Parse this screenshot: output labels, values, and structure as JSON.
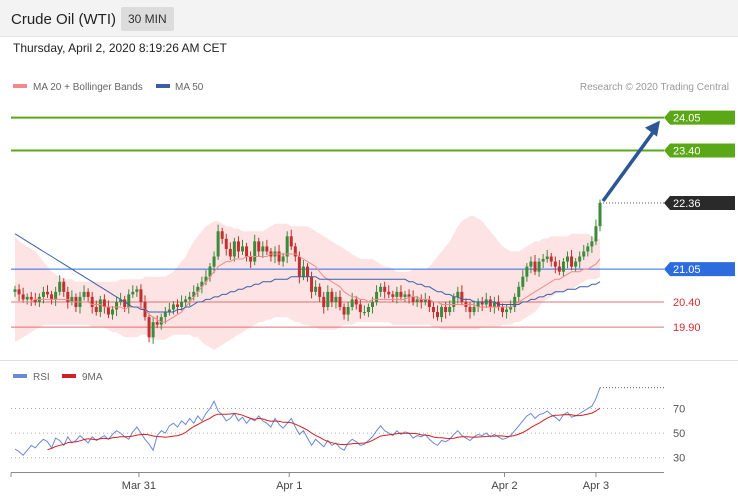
{
  "header": {
    "instrument": "Crude Oil (WTI)",
    "timeframe": "30 MIN"
  },
  "datetime": "Thursday, April 2, 2020 8:19:26 AM CET",
  "legend": {
    "ma20": "MA 20 + Bollinger Bands",
    "ma50": "MA 50",
    "credit": "Research © 2020 Trading Central"
  },
  "rsi_legend": {
    "rsi": "RSI",
    "ma9": "9MA"
  },
  "colors": {
    "up": "#3c8a3c",
    "down": "#c0302c",
    "band": "#fcd9d9",
    "ma20": "#f08a8a",
    "ma50": "#3a5fa8",
    "target": "#5aa817",
    "pivot": "#2d6cdf",
    "support": "#e07070",
    "arrow": "#2b5796",
    "rsi": "#6a8ad8",
    "ma9": "#d42020"
  },
  "chart_data": [
    {
      "type": "candlestick",
      "ylim": [
        19.25,
        24.4
      ],
      "x_ticks": [
        "Mar 31",
        "Apr 1",
        "Apr 2",
        "Apr 3"
      ],
      "levels": [
        {
          "value": 24.05,
          "label": "24.05",
          "kind": "target"
        },
        {
          "value": 23.4,
          "label": "23.40",
          "kind": "target"
        },
        {
          "value": 22.36,
          "label": "22.36",
          "kind": "last"
        },
        {
          "value": 21.05,
          "label": "21.05",
          "kind": "pivot"
        },
        {
          "value": 20.4,
          "label": "20.40",
          "kind": "support"
        },
        {
          "value": 19.9,
          "label": "19.90",
          "kind": "support"
        }
      ],
      "close": [
        20.65,
        20.55,
        20.45,
        20.5,
        20.45,
        20.4,
        20.5,
        20.6,
        20.55,
        20.45,
        20.6,
        20.8,
        20.6,
        20.4,
        20.5,
        20.3,
        20.5,
        20.6,
        20.5,
        20.3,
        20.2,
        20.45,
        20.3,
        20.15,
        20.25,
        20.4,
        20.45,
        20.3,
        20.55,
        20.6,
        20.65,
        20.4,
        20.1,
        19.7,
        20.0,
        19.95,
        20.1,
        20.2,
        20.25,
        20.35,
        20.3,
        20.4,
        20.45,
        20.5,
        20.6,
        20.7,
        20.8,
        20.9,
        21.1,
        21.3,
        21.8,
        21.65,
        21.45,
        21.3,
        21.6,
        21.4,
        21.5,
        21.3,
        21.2,
        21.6,
        21.4,
        21.5,
        21.4,
        21.3,
        21.4,
        21.2,
        21.3,
        21.7,
        21.5,
        21.3,
        20.9,
        21.1,
        20.9,
        20.6,
        20.7,
        20.5,
        20.3,
        20.6,
        20.4,
        20.5,
        20.3,
        20.15,
        20.3,
        20.45,
        20.35,
        20.2,
        20.2,
        20.3,
        20.4,
        20.6,
        20.7,
        20.6,
        20.55,
        20.5,
        20.6,
        20.5,
        20.55,
        20.5,
        20.4,
        20.45,
        20.4,
        20.45,
        20.3,
        20.2,
        20.1,
        20.3,
        20.2,
        20.3,
        20.5,
        20.6,
        20.4,
        20.3,
        20.2,
        20.3,
        20.4,
        20.35,
        20.45,
        20.3,
        20.4,
        20.3,
        20.2,
        20.25,
        20.3,
        20.5,
        20.7,
        20.9,
        21.1,
        21.2,
        21.0,
        21.2,
        21.25,
        21.3,
        21.2,
        21.1,
        21.0,
        21.2,
        21.3,
        21.1,
        21.2,
        21.3,
        21.4,
        21.5,
        21.6,
        21.9,
        22.36
      ],
      "ma20": [
        20.4,
        20.4,
        20.4,
        20.4,
        20.4,
        20.45,
        20.45,
        20.45,
        20.45,
        20.45,
        20.45,
        20.45,
        20.45,
        20.45,
        20.4,
        20.4,
        20.4,
        20.4,
        20.4,
        20.35,
        20.35,
        20.35,
        20.3,
        20.3,
        20.3,
        20.3,
        20.3,
        20.25,
        20.3,
        20.3,
        20.3,
        20.3,
        20.25,
        20.15,
        20.1,
        20.05,
        20.0,
        20.0,
        20.05,
        20.1,
        20.15,
        20.2,
        20.3,
        20.4,
        20.5,
        20.6,
        20.7,
        20.8,
        20.9,
        21.0,
        21.1,
        21.15,
        21.2,
        21.2,
        21.25,
        21.25,
        21.25,
        21.3,
        21.3,
        21.3,
        21.3,
        21.3,
        21.3,
        21.35,
        21.35,
        21.35,
        21.35,
        21.35,
        21.35,
        21.35,
        21.3,
        21.25,
        21.2,
        21.15,
        21.1,
        21.0,
        20.9,
        20.85,
        20.8,
        20.75,
        20.7,
        20.6,
        20.55,
        20.5,
        20.5,
        20.45,
        20.45,
        20.4,
        20.45,
        20.45,
        20.45,
        20.45,
        20.45,
        20.45,
        20.45,
        20.45,
        20.45,
        20.5,
        20.5,
        20.5,
        20.45,
        20.45,
        20.45,
        20.4,
        20.4,
        20.35,
        20.35,
        20.35,
        20.35,
        20.35,
        20.35,
        20.35,
        20.35,
        20.35,
        20.3,
        20.3,
        20.3,
        20.3,
        20.3,
        20.3,
        20.3,
        20.3,
        20.3,
        20.35,
        20.4,
        20.45,
        20.5,
        20.55,
        20.6,
        20.65,
        20.7,
        20.75,
        20.8,
        20.85,
        20.85,
        20.9,
        20.95,
        21.0,
        21.0,
        21.0,
        21.05,
        21.05,
        21.1,
        21.15,
        21.25
      ],
      "upper": [
        21.7,
        21.6,
        21.55,
        21.5,
        21.45,
        21.4,
        21.3,
        21.2,
        21.1,
        21.0,
        20.95,
        20.9,
        20.85,
        20.85,
        20.85,
        20.8,
        20.8,
        20.8,
        20.8,
        20.8,
        20.8,
        20.8,
        20.8,
        20.8,
        20.8,
        20.8,
        20.85,
        20.85,
        20.85,
        20.85,
        20.85,
        20.85,
        20.9,
        20.9,
        20.9,
        20.9,
        20.9,
        20.9,
        20.95,
        21.0,
        21.1,
        21.2,
        21.3,
        21.45,
        21.6,
        21.7,
        21.8,
        21.9,
        21.95,
        22.0,
        22.0,
        21.95,
        21.9,
        21.9,
        21.85,
        21.85,
        21.8,
        21.8,
        21.8,
        21.8,
        21.8,
        21.8,
        21.85,
        21.9,
        21.95,
        21.95,
        21.95,
        21.95,
        21.9,
        21.9,
        21.9,
        21.9,
        21.9,
        21.85,
        21.8,
        21.75,
        21.7,
        21.65,
        21.6,
        21.55,
        21.5,
        21.45,
        21.4,
        21.35,
        21.3,
        21.25,
        21.25,
        21.25,
        21.25,
        21.2,
        21.15,
        21.1,
        21.1,
        21.05,
        21.0,
        21.0,
        21.0,
        21.0,
        21.05,
        21.05,
        21.05,
        21.05,
        21.1,
        21.2,
        21.3,
        21.4,
        21.5,
        21.6,
        21.75,
        21.9,
        22.0,
        22.05,
        22.1,
        22.1,
        22.05,
        22.0,
        21.9,
        21.8,
        21.7,
        21.6,
        21.5,
        21.45,
        21.4,
        21.4,
        21.4,
        21.45,
        21.5,
        21.55,
        21.6,
        21.6,
        21.65,
        21.65,
        21.7,
        21.7,
        21.7,
        21.7,
        21.7,
        21.75,
        21.75,
        21.75,
        21.75,
        21.75,
        21.7,
        21.65,
        21.65
      ],
      "lower": [
        19.6,
        19.65,
        19.7,
        19.75,
        19.8,
        19.85,
        19.9,
        19.95,
        19.95,
        19.95,
        19.95,
        19.95,
        19.95,
        19.95,
        19.95,
        19.95,
        19.95,
        19.95,
        19.95,
        19.9,
        19.9,
        19.9,
        19.9,
        19.85,
        19.8,
        19.8,
        19.75,
        19.7,
        19.7,
        19.7,
        19.7,
        19.75,
        19.75,
        19.7,
        19.65,
        19.65,
        19.65,
        19.65,
        19.7,
        19.75,
        19.75,
        19.75,
        19.75,
        19.75,
        19.7,
        19.7,
        19.6,
        19.55,
        19.5,
        19.45,
        19.5,
        19.55,
        19.6,
        19.65,
        19.7,
        19.75,
        19.8,
        19.85,
        19.9,
        19.95,
        20.0,
        20.0,
        20.05,
        20.05,
        20.1,
        20.1,
        20.1,
        20.1,
        20.05,
        20.0,
        20.0,
        19.95,
        19.95,
        19.9,
        19.9,
        19.85,
        19.85,
        19.85,
        19.85,
        19.85,
        19.9,
        19.95,
        19.95,
        19.95,
        20.0,
        20.0,
        20.0,
        20.0,
        20.0,
        20.0,
        20.0,
        20.0,
        20.0,
        19.95,
        19.95,
        19.95,
        19.95,
        19.95,
        19.95,
        19.95,
        19.95,
        19.95,
        19.95,
        19.9,
        19.9,
        19.85,
        19.85,
        19.85,
        19.85,
        19.85,
        19.85,
        19.85,
        19.85,
        19.85,
        19.85,
        19.9,
        19.9,
        19.9,
        19.9,
        19.9,
        19.95,
        19.95,
        19.95,
        20.0,
        20.0,
        20.05,
        20.1,
        20.15,
        20.2,
        20.3,
        20.4,
        20.45,
        20.5,
        20.55,
        20.6,
        20.6,
        20.65,
        20.65,
        20.7,
        20.75,
        20.8,
        20.85,
        20.85,
        20.85,
        20.9
      ],
      "ma50": [
        21.75,
        21.7,
        21.65,
        21.6,
        21.55,
        21.5,
        21.45,
        21.4,
        21.35,
        21.3,
        21.25,
        21.2,
        21.15,
        21.1,
        21.05,
        21.0,
        20.95,
        20.9,
        20.85,
        20.8,
        20.75,
        20.7,
        20.65,
        20.6,
        20.55,
        20.5,
        20.45,
        20.4,
        20.35,
        20.3,
        20.3,
        20.25,
        20.25,
        20.2,
        20.2,
        20.2,
        20.2,
        20.2,
        20.2,
        20.2,
        20.25,
        20.25,
        20.3,
        20.3,
        20.35,
        20.4,
        20.4,
        20.45,
        20.45,
        20.5,
        20.5,
        20.55,
        20.55,
        20.6,
        20.6,
        20.65,
        20.65,
        20.7,
        20.7,
        20.75,
        20.75,
        20.8,
        20.8,
        20.8,
        20.85,
        20.85,
        20.85,
        20.85,
        20.9,
        20.9,
        20.9,
        20.9,
        20.9,
        20.9,
        20.9,
        20.85,
        20.85,
        20.85,
        20.85,
        20.85,
        20.85,
        20.85,
        20.85,
        20.85,
        20.85,
        20.85,
        20.85,
        20.85,
        20.85,
        20.85,
        20.85,
        20.85,
        20.85,
        20.85,
        20.85,
        20.85,
        20.85,
        20.8,
        20.8,
        20.75,
        20.75,
        20.7,
        20.7,
        20.65,
        20.6,
        20.6,
        20.55,
        20.55,
        20.5,
        20.5,
        20.45,
        20.45,
        20.45,
        20.4,
        20.4,
        20.4,
        20.4,
        20.4,
        20.4,
        20.35,
        20.35,
        20.35,
        20.35,
        20.35,
        20.35,
        20.4,
        20.4,
        20.45,
        20.45,
        20.5,
        20.5,
        20.55,
        20.55,
        20.6,
        20.6,
        20.6,
        20.65,
        20.65,
        20.65,
        20.7,
        20.7,
        20.7,
        20.75,
        20.75,
        20.8
      ],
      "ma50_start_index": 0
    },
    {
      "type": "line",
      "ylim": [
        20,
        90
      ],
      "y_ticks": [
        70,
        50,
        30
      ],
      "series": [
        {
          "name": "RSI",
          "values": [
            37,
            35,
            32,
            36,
            40,
            38,
            42,
            45,
            43,
            38,
            46,
            44,
            40,
            47,
            42,
            44,
            48,
            45,
            42,
            47,
            44,
            46,
            48,
            45,
            49,
            52,
            50,
            47,
            45,
            51,
            55,
            50,
            45,
            41,
            36,
            48,
            52,
            50,
            56,
            58,
            55,
            60,
            57,
            62,
            58,
            64,
            60,
            66,
            70,
            76,
            68,
            65,
            60,
            62,
            66,
            60,
            63,
            58,
            62,
            60,
            64,
            60,
            58,
            55,
            62,
            57,
            54,
            58,
            62,
            55,
            49,
            52,
            46,
            40,
            45,
            42,
            39,
            44,
            40,
            42,
            38,
            36,
            42,
            45,
            43,
            40,
            41,
            44,
            47,
            52,
            56,
            52,
            50,
            48,
            52,
            49,
            51,
            50,
            46,
            48,
            47,
            49,
            45,
            42,
            40,
            44,
            43,
            45,
            49,
            52,
            48,
            46,
            44,
            47,
            49,
            48,
            50,
            47,
            49,
            47,
            45,
            46,
            48,
            52,
            56,
            60,
            64,
            66,
            62,
            65,
            66,
            68,
            65,
            63,
            60,
            65,
            67,
            63,
            64,
            66,
            68,
            70,
            72,
            78,
            87
          ]
        },
        {
          "name": "9MA",
          "values": [
            null,
            null,
            null,
            null,
            null,
            null,
            null,
            null,
            36.5,
            37.6,
            39.1,
            40.1,
            40.8,
            42.3,
            42.7,
            42.9,
            43.8,
            44.8,
            45.4,
            45.1,
            44.7,
            45.4,
            45.8,
            45.3,
            46.2,
            46.5,
            47.0,
            47.1,
            47.2,
            47.6,
            48.4,
            48.8,
            49.0,
            48.6,
            47.7,
            47.3,
            47.1,
            46.6,
            47.0,
            47.6,
            47.9,
            49.0,
            50.5,
            53.2,
            55.3,
            57.0,
            58.9,
            60.5,
            62.1,
            64.4,
            65.4,
            65.4,
            65.3,
            65.6,
            66.0,
            65.5,
            64.6,
            63.2,
            62.0,
            61.2,
            62.0,
            61.5,
            60.4,
            59.7,
            59.9,
            59.6,
            58.8,
            58.8,
            58.4,
            57.3,
            55.7,
            54.2,
            52.5,
            50.0,
            48.2,
            46.6,
            44.7,
            43.2,
            42.2,
            41.3,
            40.8,
            40.7,
            40.9,
            41.4,
            41.6,
            41.7,
            42.0,
            42.7,
            44.1,
            45.9,
            47.6,
            48.2,
            48.6,
            49.0,
            49.6,
            50.0,
            49.9,
            49.8,
            49.8,
            49.5,
            48.6,
            48.4,
            48.0,
            46.9,
            46.4,
            46.3,
            45.8,
            45.6,
            45.9,
            46.6,
            47.1,
            47.1,
            46.9,
            46.6,
            46.9,
            47.1,
            47.3,
            47.7,
            47.5,
            47.8,
            47.7,
            47.3,
            47.4,
            48.1,
            49.2,
            50.5,
            52.3,
            54.5,
            56.5,
            58.1,
            60.2,
            62.2,
            63.8,
            64.5,
            64.7,
            64.9,
            65.1,
            64.9,
            64.3,
            64.3,
            64.8,
            65.5,
            66.3,
            68.0,
            70.3
          ]
        }
      ]
    }
  ]
}
